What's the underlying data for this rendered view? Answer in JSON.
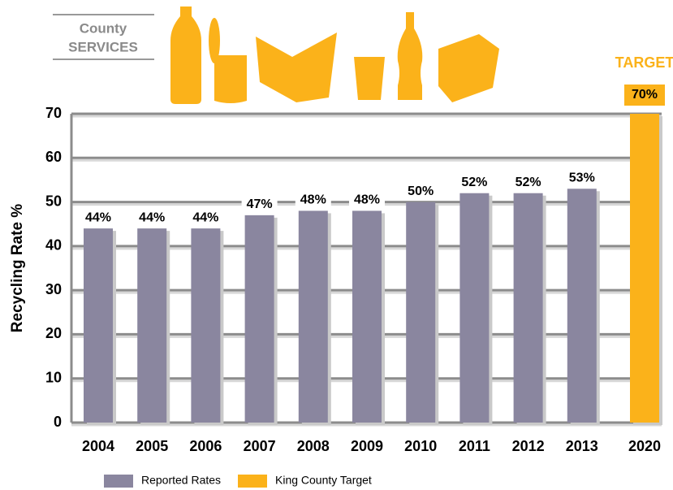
{
  "chart_data": {
    "type": "bar",
    "logo": [
      "County",
      "SERVICES"
    ],
    "ylabel": "Recycling Rate %",
    "annotation": "TARGET",
    "categories": [
      "2004",
      "2005",
      "2006",
      "2007",
      "2008",
      "2009",
      "2010",
      "2011",
      "2012",
      "2013",
      "2020"
    ],
    "series": [
      {
        "name": "Reported Rates",
        "color": "#8a869f",
        "values": [
          44,
          44,
          44,
          47,
          48,
          48,
          50,
          52,
          52,
          53,
          null
        ],
        "value_labels": [
          "44%",
          "44%",
          "44%",
          "47%",
          "48%",
          "48%",
          "50%",
          "52%",
          "52%",
          "53%",
          null
        ]
      },
      {
        "name": "King County Target",
        "color": "#fbb21a",
        "values": [
          null,
          null,
          null,
          null,
          null,
          null,
          null,
          null,
          null,
          null,
          70
        ],
        "value_labels": [
          null,
          null,
          null,
          null,
          null,
          null,
          null,
          null,
          null,
          null,
          "70%"
        ]
      }
    ],
    "ylim": [
      0,
      70
    ],
    "yticks": [
      0,
      10,
      20,
      30,
      40,
      50,
      60,
      70
    ],
    "grid": true,
    "legend": "bottom"
  }
}
